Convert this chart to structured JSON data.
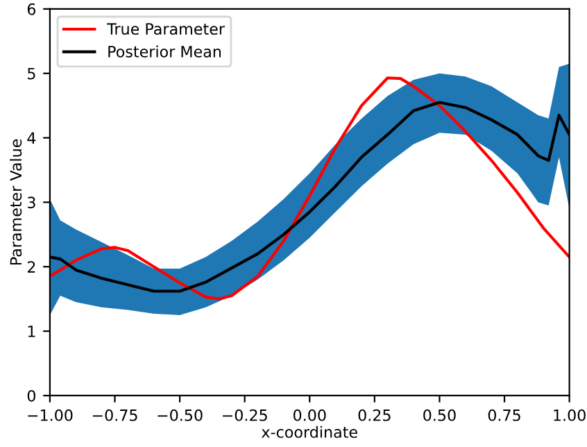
{
  "chart_data": {
    "type": "line",
    "xlabel": "x-coordinate",
    "ylabel": "Parameter Value",
    "series": [
      {
        "name": "True Parameter",
        "color": "#ff0000",
        "x": [
          -1,
          -0.9,
          -0.8,
          -0.75,
          -0.7,
          -0.6,
          -0.5,
          -0.4,
          -0.35,
          -0.3,
          -0.2,
          -0.1,
          0,
          0.1,
          0.2,
          0.3,
          0.35,
          0.4,
          0.5,
          0.6,
          0.7,
          0.8,
          0.9,
          1.0
        ],
        "values": [
          1.85,
          2.1,
          2.28,
          2.3,
          2.25,
          2.0,
          1.75,
          1.53,
          1.5,
          1.55,
          1.85,
          2.4,
          3.1,
          3.85,
          4.5,
          4.93,
          4.92,
          4.8,
          4.5,
          4.1,
          3.65,
          3.15,
          2.6,
          2.15
        ]
      },
      {
        "name": "Posterior Mean",
        "color": "#000000",
        "x": [
          -1,
          -0.96,
          -0.9,
          -0.8,
          -0.7,
          -0.6,
          -0.5,
          -0.4,
          -0.3,
          -0.2,
          -0.1,
          0,
          0.1,
          0.2,
          0.3,
          0.4,
          0.5,
          0.6,
          0.7,
          0.8,
          0.88,
          0.92,
          0.96,
          1.0
        ],
        "values": [
          2.15,
          2.12,
          1.95,
          1.82,
          1.72,
          1.62,
          1.62,
          1.76,
          1.98,
          2.2,
          2.5,
          2.85,
          3.25,
          3.7,
          4.05,
          4.42,
          4.55,
          4.47,
          4.28,
          4.05,
          3.72,
          3.65,
          4.35,
          4.05
        ],
        "lower": [
          1.25,
          1.55,
          1.45,
          1.37,
          1.33,
          1.27,
          1.25,
          1.37,
          1.55,
          1.8,
          2.1,
          2.45,
          2.85,
          3.25,
          3.6,
          3.9,
          4.08,
          4.05,
          3.8,
          3.45,
          3.0,
          2.95,
          3.7,
          2.9
        ],
        "upper": [
          3.05,
          2.72,
          2.58,
          2.38,
          2.18,
          1.97,
          1.97,
          2.15,
          2.4,
          2.7,
          3.05,
          3.45,
          3.9,
          4.3,
          4.65,
          4.9,
          5.0,
          4.95,
          4.8,
          4.55,
          4.35,
          4.3,
          5.1,
          5.15
        ]
      }
    ],
    "xlim": [
      -1,
      1
    ],
    "ylim": [
      0,
      6
    ],
    "xticks": [
      {
        "value": -1,
        "label": "−1.00"
      },
      {
        "value": -0.75,
        "label": "−0.75"
      },
      {
        "value": -0.5,
        "label": "−0.50"
      },
      {
        "value": -0.25,
        "label": "−0.25"
      },
      {
        "value": 0,
        "label": "0.00"
      },
      {
        "value": 0.25,
        "label": "0.25"
      },
      {
        "value": 0.5,
        "label": "0.50"
      },
      {
        "value": 0.75,
        "label": "0.75"
      },
      {
        "value": 1,
        "label": "1.00"
      }
    ],
    "yticks": [
      0,
      1,
      2,
      3,
      4,
      5,
      6
    ],
    "legend": "top left",
    "grid": false
  }
}
